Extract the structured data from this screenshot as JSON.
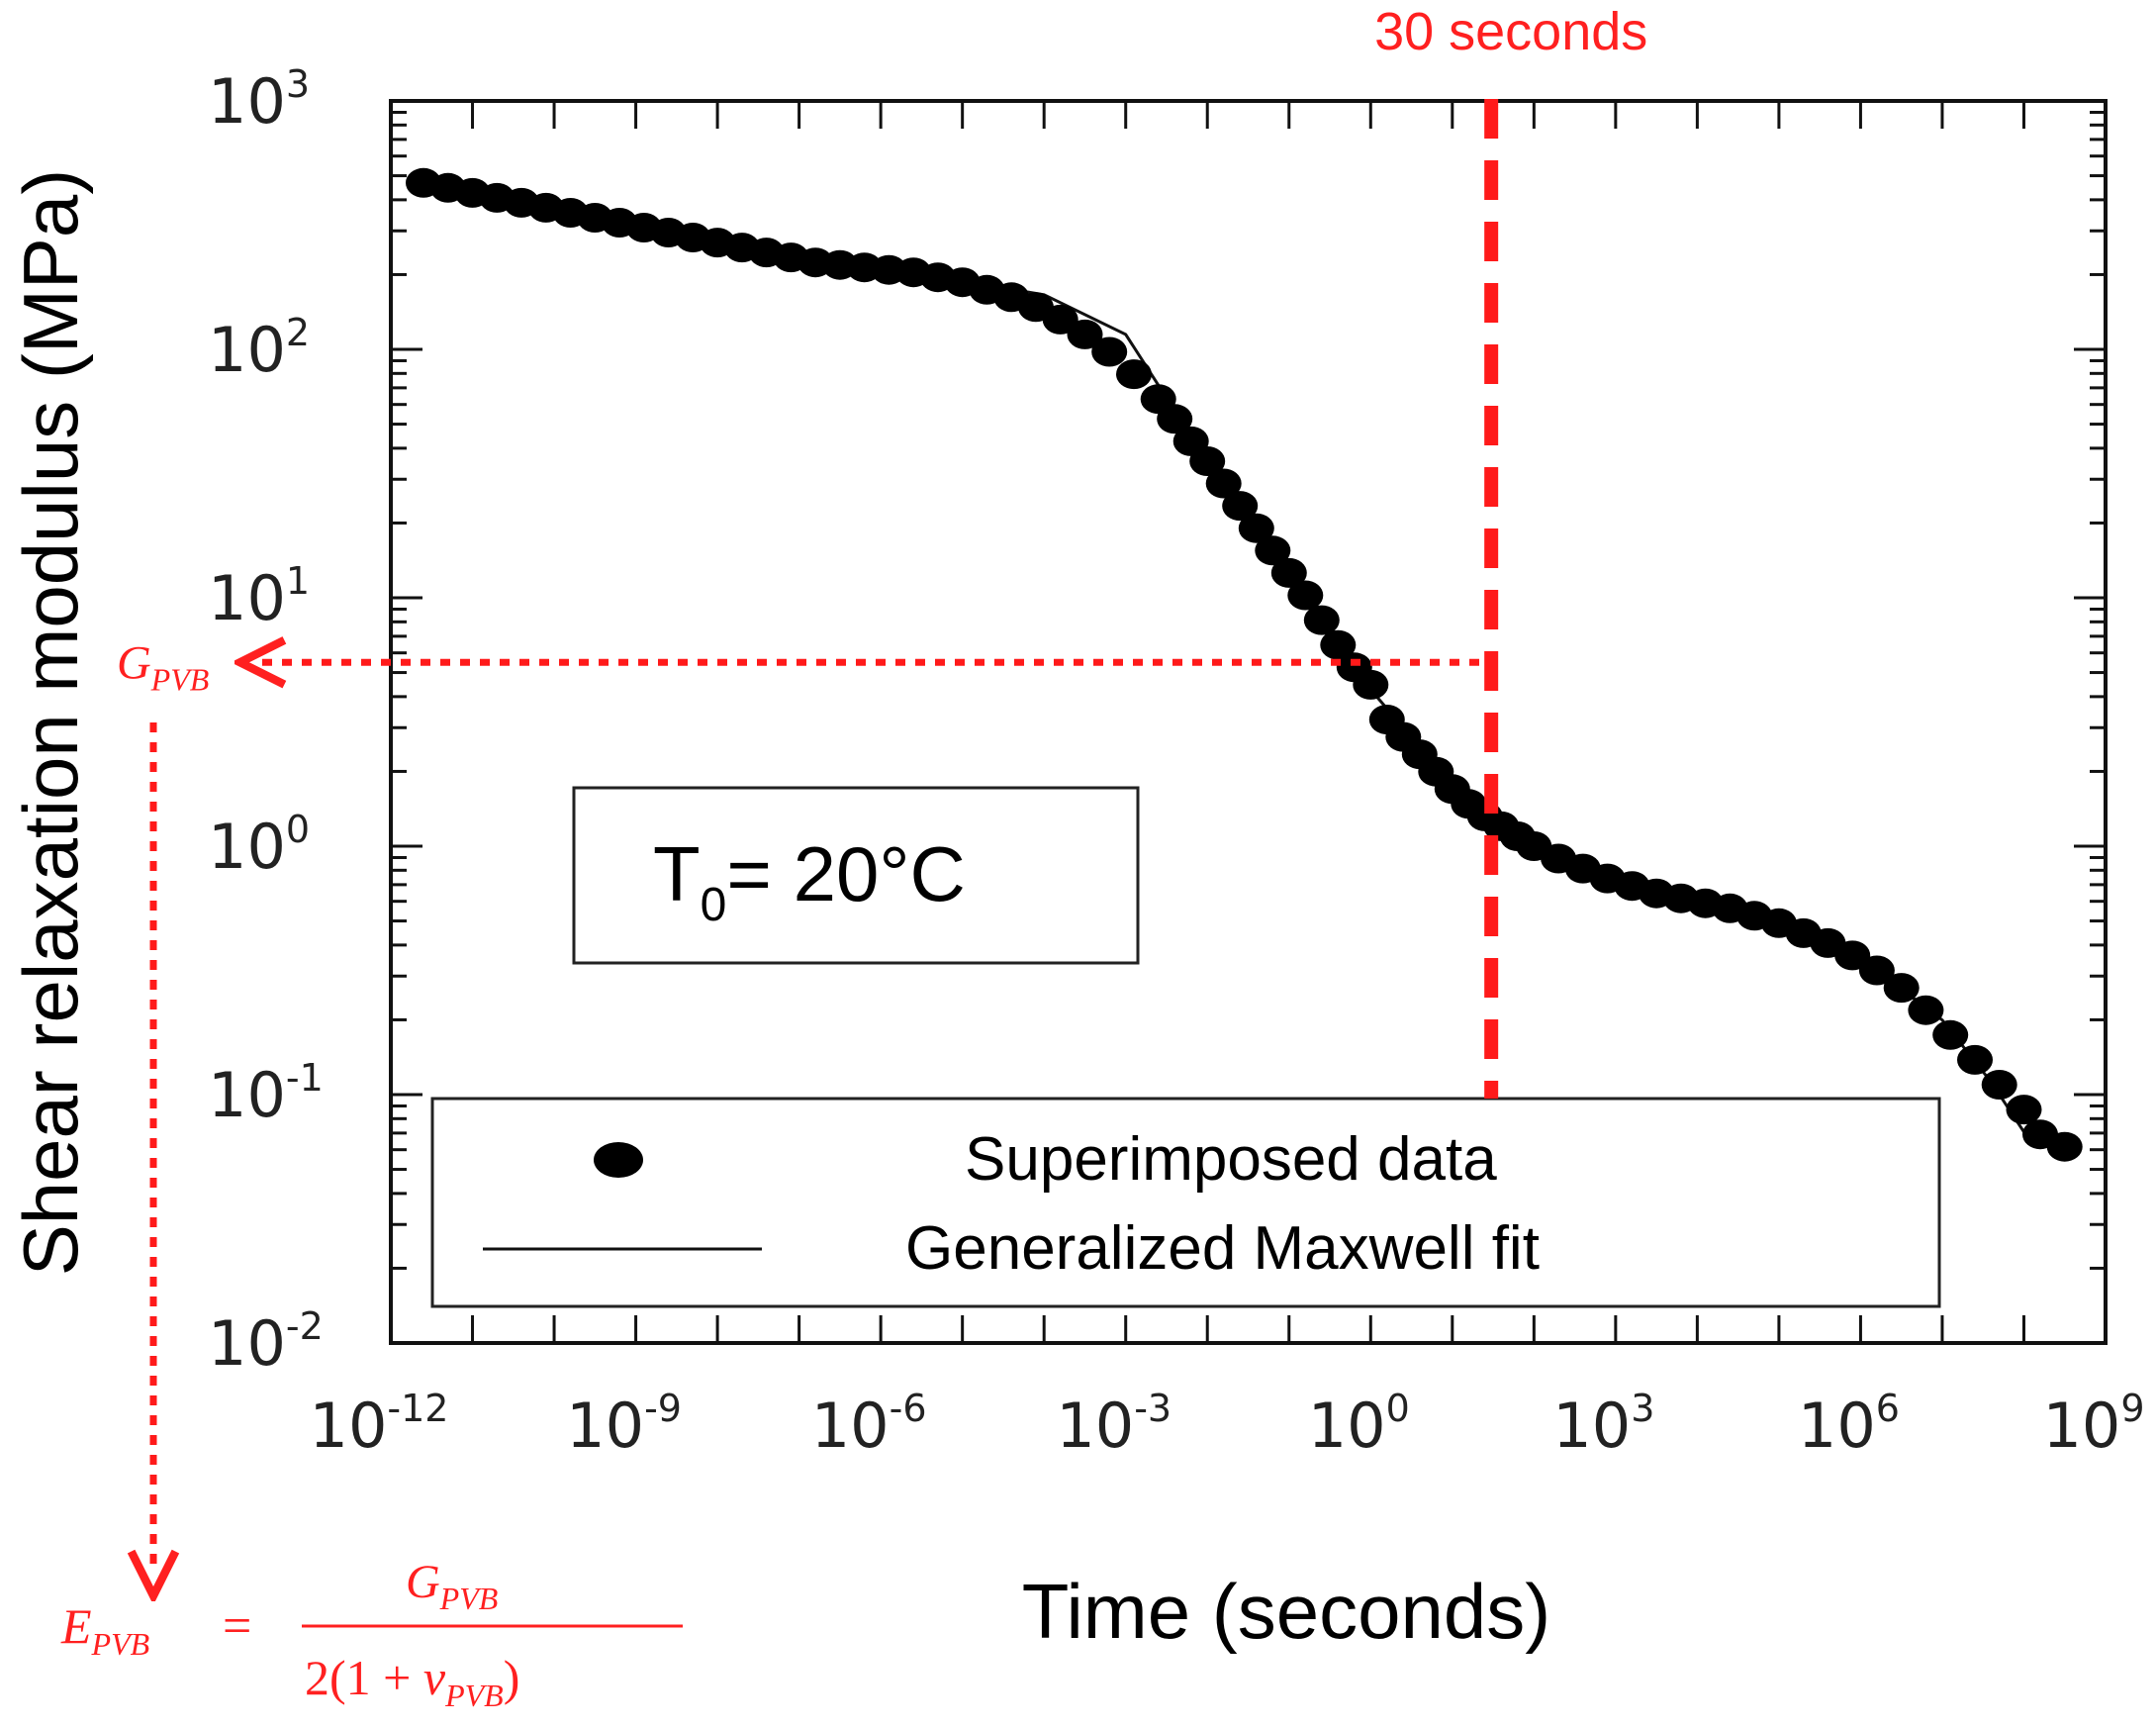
{
  "chart_data": {
    "type": "scatter",
    "xscale": "log",
    "yscale": "log",
    "xlabel": "Time (seconds)",
    "ylabel": "Shear relaxation modulus (MPa)",
    "xlim": [
      -12,
      9
    ],
    "ylim": [
      -2,
      3
    ],
    "x_tick_exponents": [
      "-12",
      "-9",
      "-6",
      "-3",
      "0",
      "3",
      "6",
      "9"
    ],
    "y_tick_exponents": [
      "3",
      "2",
      "1",
      "0",
      "-1",
      "-2"
    ],
    "tick_base": "10",
    "series": [
      {
        "name": "Superimposed data",
        "marker": "filled-circle",
        "log10_x": [
          -11.6,
          -11.3,
          -11.0,
          -10.7,
          -10.4,
          -10.1,
          -9.8,
          -9.5,
          -9.2,
          -8.9,
          -8.6,
          -8.3,
          -8.0,
          -7.7,
          -7.4,
          -7.1,
          -6.8,
          -6.5,
          -6.2,
          -5.9,
          -5.6,
          -5.3,
          -5.0,
          -4.7,
          -4.4,
          -4.1,
          -3.8,
          -3.5,
          -3.2,
          -2.9,
          -2.6,
          -2.4,
          -2.2,
          -2.0,
          -1.8,
          -1.6,
          -1.4,
          -1.2,
          -1.0,
          -0.8,
          -0.6,
          -0.4,
          -0.2,
          0.0,
          0.2,
          0.4,
          0.6,
          0.8,
          1.0,
          1.2,
          1.4,
          1.6,
          1.8,
          2.0,
          2.3,
          2.6,
          2.9,
          3.2,
          3.5,
          3.8,
          4.1,
          4.4,
          4.7,
          5.0,
          5.3,
          5.6,
          5.9,
          6.2,
          6.5,
          6.8,
          7.1,
          7.4,
          7.7,
          8.0,
          8.2,
          8.5
        ],
        "log10_y": [
          2.67,
          2.65,
          2.63,
          2.61,
          2.59,
          2.57,
          2.55,
          2.53,
          2.51,
          2.49,
          2.47,
          2.45,
          2.43,
          2.41,
          2.39,
          2.37,
          2.35,
          2.34,
          2.33,
          2.32,
          2.31,
          2.29,
          2.27,
          2.24,
          2.21,
          2.17,
          2.12,
          2.06,
          1.99,
          1.9,
          1.8,
          1.72,
          1.63,
          1.55,
          1.46,
          1.37,
          1.28,
          1.19,
          1.1,
          1.01,
          0.91,
          0.81,
          0.72,
          0.65,
          0.51,
          0.44,
          0.37,
          0.3,
          0.23,
          0.17,
          0.12,
          0.08,
          0.04,
          0.0,
          -0.05,
          -0.09,
          -0.13,
          -0.16,
          -0.19,
          -0.21,
          -0.23,
          -0.25,
          -0.28,
          -0.31,
          -0.35,
          -0.39,
          -0.44,
          -0.5,
          -0.57,
          -0.66,
          -0.76,
          -0.86,
          -0.96,
          -1.06,
          -1.16,
          -1.21
        ]
      },
      {
        "name": "Generalized Maxwell fit",
        "marker": "line",
        "log10_x": [
          -11.6,
          -9.0,
          -6.0,
          -4.0,
          -3.0,
          -2.0,
          -1.0,
          0.0,
          0.5,
          1.0,
          2.0,
          3.0,
          4.0,
          5.0,
          6.0,
          7.0,
          7.6,
          8.0,
          8.5
        ],
        "log10_y": [
          2.67,
          2.49,
          2.33,
          2.22,
          2.06,
          1.55,
          1.08,
          0.63,
          0.44,
          0.23,
          0.0,
          -0.17,
          -0.23,
          -0.31,
          -0.45,
          -0.7,
          -0.95,
          -1.15,
          -1.21
        ]
      }
    ],
    "annotations": {
      "vertical_line_label": "30 seconds",
      "vertical_line_log10_x": 1.477,
      "horizontal_line_log10_y": 0.74,
      "box_text_main": "T",
      "box_text_sub": "0",
      "box_text_rest": "= 20°C",
      "g_symbol": "G",
      "g_subscript": "PVB",
      "e_symbol": "E",
      "e_subscript": "PVB",
      "equals": "=",
      "fraction_numerator_symbol": "G",
      "fraction_numerator_subscript": "PVB",
      "fraction_denominator_prefix": "2(1 + ",
      "nu_symbol": "ν",
      "nu_subscript": "PVB",
      "fraction_denominator_suffix": ")"
    },
    "legend": {
      "position": "bottom",
      "entries": [
        "Superimposed data",
        "Generalized Maxwell fit"
      ]
    }
  }
}
